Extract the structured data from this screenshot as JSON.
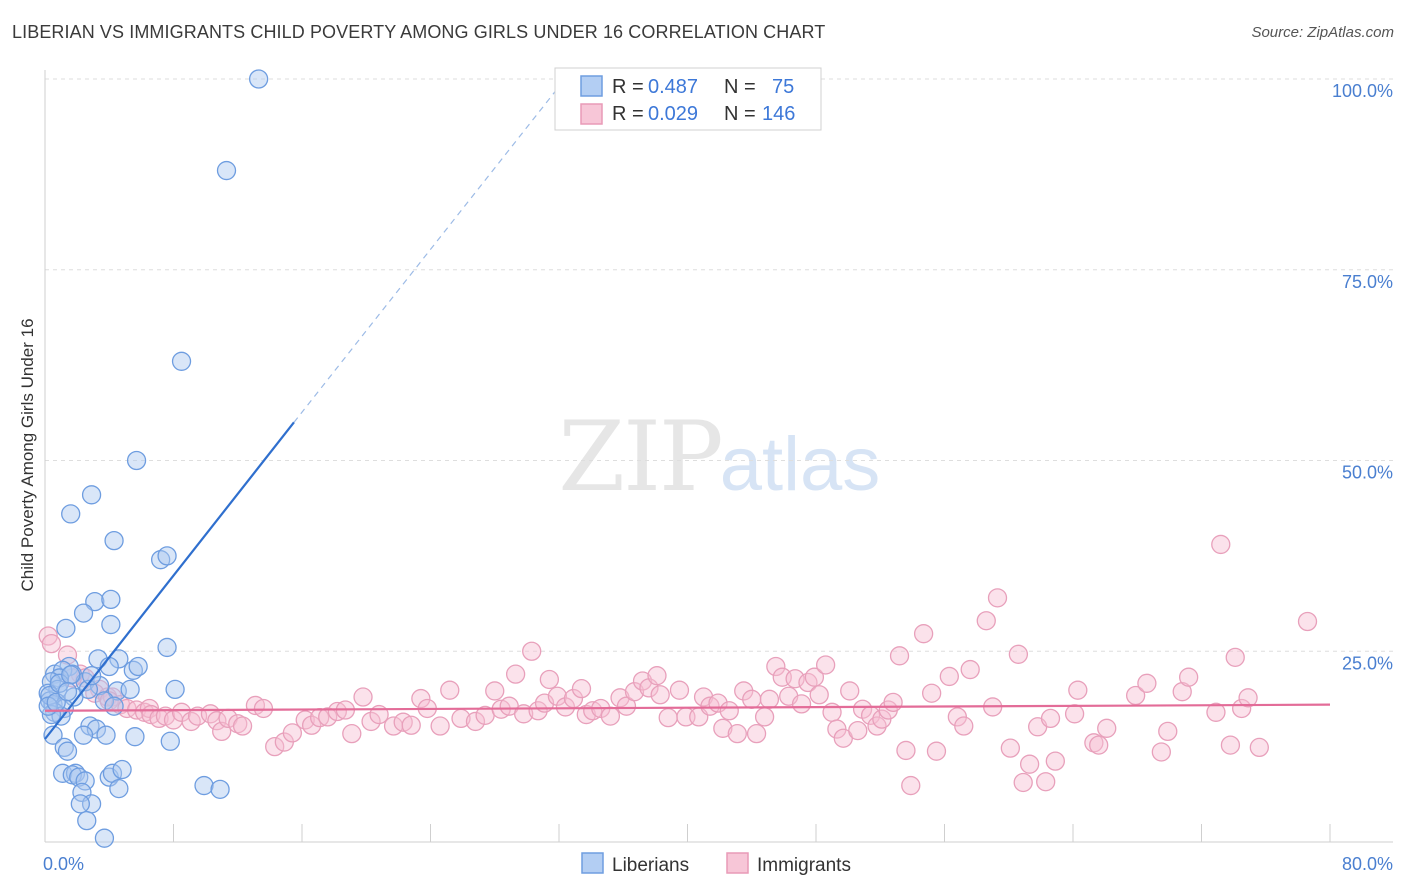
{
  "title": "LIBERIAN VS IMMIGRANTS CHILD POVERTY AMONG GIRLS UNDER 16 CORRELATION CHART",
  "source": "Source: ZipAtlas.com",
  "watermark": {
    "zip": "ZIP",
    "atlas": "atlas"
  },
  "colors": {
    "blue": "#5b8fdc",
    "blue_fill": "#a9c8f0",
    "blue_line": "#2f6fce",
    "pink": "#e691b0",
    "pink_fill": "#f6c4d5",
    "pink_line": "#e36c98",
    "tick": "#4a7fd0",
    "grid": "#dcdcdc"
  },
  "chart_data": {
    "type": "scatter",
    "title": "LIBERIAN VS IMMIGRANTS CHILD POVERTY AMONG GIRLS UNDER 16 CORRELATION CHART",
    "xlabel": "",
    "ylabel": "Child Poverty Among Girls Under 16",
    "xlim": [
      0,
      80
    ],
    "ylim": [
      0,
      105
    ],
    "x_tick_labels": [
      "0.0%",
      "80.0%"
    ],
    "y_ticks": [
      25,
      50,
      75,
      100
    ],
    "y_tick_labels": [
      "25.0%",
      "50.0%",
      "75.0%",
      "100.0%"
    ],
    "grid": true,
    "legend": {
      "placement": "top-center",
      "entries": [
        {
          "r_label": "R =",
          "r_value": "0.487",
          "n_label": "N =",
          "n_value": "75"
        },
        {
          "r_label": "R =",
          "r_value": "0.029",
          "n_label": "N =",
          "n_value": "146"
        }
      ]
    },
    "series": [
      {
        "name": "Liberians",
        "trend": {
          "x0": 0,
          "y0": 13.5,
          "x1": 15.5,
          "y1": 55,
          "dash_to_x": 32,
          "dash_to_y": 99
        },
        "points": [
          [
            13.3,
            100
          ],
          [
            11.3,
            88
          ],
          [
            8.5,
            63
          ],
          [
            5.7,
            50
          ],
          [
            2.9,
            45.5
          ],
          [
            1.6,
            43
          ],
          [
            4.3,
            39.5
          ],
          [
            7.2,
            37
          ],
          [
            7.6,
            37.5
          ],
          [
            3.1,
            31.5
          ],
          [
            4.1,
            31.8
          ],
          [
            2.4,
            30
          ],
          [
            1.3,
            28
          ],
          [
            4.1,
            28.5
          ],
          [
            7.6,
            25.5
          ],
          [
            3.3,
            24
          ],
          [
            4.6,
            24
          ],
          [
            1.5,
            23
          ],
          [
            0.6,
            22
          ],
          [
            1.1,
            22.5
          ],
          [
            1.7,
            22
          ],
          [
            0.9,
            21.5
          ],
          [
            2.5,
            21
          ],
          [
            0.4,
            21
          ],
          [
            3.4,
            20.5
          ],
          [
            0.8,
            20
          ],
          [
            2.7,
            20
          ],
          [
            0.2,
            19.5
          ],
          [
            1.8,
            19
          ],
          [
            0.3,
            18.5
          ],
          [
            0.5,
            18
          ],
          [
            1.2,
            17.5
          ],
          [
            4.5,
            19.8
          ],
          [
            5.5,
            22.5
          ],
          [
            2.9,
            21.8
          ],
          [
            3.7,
            18.5
          ],
          [
            0.6,
            17
          ],
          [
            1.0,
            16.5
          ],
          [
            8.1,
            20
          ],
          [
            5.3,
            20
          ],
          [
            0.4,
            16.7
          ],
          [
            2.8,
            15.2
          ],
          [
            3.2,
            14.8
          ],
          [
            0.5,
            14
          ],
          [
            2.4,
            14
          ],
          [
            3.8,
            14
          ],
          [
            5.6,
            13.8
          ],
          [
            7.8,
            13.2
          ],
          [
            1.2,
            12.4
          ],
          [
            1.4,
            11.9
          ],
          [
            1.1,
            9
          ],
          [
            1.9,
            9
          ],
          [
            1.7,
            8.8
          ],
          [
            2.1,
            8.5
          ],
          [
            4.0,
            8.5
          ],
          [
            4.2,
            9
          ],
          [
            4.8,
            9.5
          ],
          [
            2.5,
            8
          ],
          [
            2.3,
            6.5
          ],
          [
            4.6,
            7
          ],
          [
            9.9,
            7.4
          ],
          [
            10.9,
            6.9
          ],
          [
            2.9,
            5
          ],
          [
            2.2,
            5
          ],
          [
            2.6,
            2.8
          ],
          [
            3.7,
            0.5
          ],
          [
            4.3,
            17.8
          ],
          [
            4.0,
            23
          ],
          [
            0.3,
            19.2
          ],
          [
            0.9,
            20.8
          ],
          [
            1.6,
            21.9
          ],
          [
            0.2,
            17.8
          ],
          [
            0.7,
            18.3
          ],
          [
            1.4,
            19.7
          ],
          [
            5.8,
            23
          ]
        ]
      },
      {
        "name": "Immigrants",
        "trend": {
          "x0": 0,
          "y0": 17.2,
          "x1": 80,
          "y1": 18.0
        },
        "points": [
          [
            73.2,
            39
          ],
          [
            0.2,
            27
          ],
          [
            0.4,
            26
          ],
          [
            1.4,
            24.5
          ],
          [
            2.2,
            22
          ],
          [
            2.5,
            21.5
          ],
          [
            1.7,
            21.5
          ],
          [
            3.4,
            20
          ],
          [
            3.1,
            19.5
          ],
          [
            3.9,
            19
          ],
          [
            4.2,
            19
          ],
          [
            4.0,
            18.5
          ],
          [
            4.7,
            18
          ],
          [
            5.1,
            17.5
          ],
          [
            5.7,
            17.3
          ],
          [
            6.2,
            17
          ],
          [
            6.5,
            17.5
          ],
          [
            6.6,
            16.7
          ],
          [
            7.1,
            16.2
          ],
          [
            7.5,
            16.5
          ],
          [
            8.0,
            16
          ],
          [
            8.5,
            17
          ],
          [
            9.1,
            15.8
          ],
          [
            9.5,
            16.5
          ],
          [
            10.3,
            16.8
          ],
          [
            10.7,
            15.9
          ],
          [
            11.0,
            14.5
          ],
          [
            11.4,
            16.2
          ],
          [
            12.0,
            15.5
          ],
          [
            12.3,
            15.2
          ],
          [
            13.1,
            17.9
          ],
          [
            13.6,
            17.5
          ],
          [
            14.3,
            12.5
          ],
          [
            14.9,
            13.1
          ],
          [
            15.4,
            14.3
          ],
          [
            16.2,
            16
          ],
          [
            16.6,
            15.3
          ],
          [
            17.1,
            16.3
          ],
          [
            17.6,
            16.4
          ],
          [
            18.2,
            17.1
          ],
          [
            18.7,
            17.3
          ],
          [
            19.1,
            14.2
          ],
          [
            19.8,
            19
          ],
          [
            20.3,
            15.8
          ],
          [
            20.8,
            16.7
          ],
          [
            21.7,
            15.2
          ],
          [
            22.3,
            15.7
          ],
          [
            22.8,
            15.3
          ],
          [
            23.4,
            18.8
          ],
          [
            23.8,
            17.5
          ],
          [
            24.6,
            15.2
          ],
          [
            25.2,
            19.9
          ],
          [
            25.9,
            16.2
          ],
          [
            26.8,
            15.8
          ],
          [
            27.4,
            16.6
          ],
          [
            28.0,
            19.8
          ],
          [
            28.4,
            17.4
          ],
          [
            28.9,
            17.8
          ],
          [
            29.3,
            22
          ],
          [
            29.8,
            16.8
          ],
          [
            30.3,
            25
          ],
          [
            30.7,
            17.2
          ],
          [
            31.1,
            18.2
          ],
          [
            31.4,
            21.3
          ],
          [
            31.9,
            19.1
          ],
          [
            32.4,
            17.7
          ],
          [
            32.9,
            18.8
          ],
          [
            33.4,
            20.1
          ],
          [
            33.7,
            16.7
          ],
          [
            34.1,
            17.2
          ],
          [
            34.6,
            17.5
          ],
          [
            35.2,
            16.5
          ],
          [
            35.8,
            18.9
          ],
          [
            36.2,
            17.8
          ],
          [
            36.7,
            19.7
          ],
          [
            37.2,
            21.1
          ],
          [
            37.6,
            20.2
          ],
          [
            38.1,
            21.8
          ],
          [
            38.3,
            19.3
          ],
          [
            38.8,
            16.3
          ],
          [
            39.5,
            19.9
          ],
          [
            39.9,
            16.4
          ],
          [
            40.7,
            16.4
          ],
          [
            41.0,
            19
          ],
          [
            41.4,
            17.8
          ],
          [
            41.9,
            18.2
          ],
          [
            42.2,
            14.9
          ],
          [
            42.6,
            17.2
          ],
          [
            43.1,
            14.2
          ],
          [
            43.5,
            19.8
          ],
          [
            44.0,
            18.7
          ],
          [
            44.3,
            14.2
          ],
          [
            44.8,
            16.4
          ],
          [
            45.1,
            18.7
          ],
          [
            45.5,
            23
          ],
          [
            45.9,
            21.6
          ],
          [
            46.3,
            19.1
          ],
          [
            46.7,
            21.4
          ],
          [
            47.1,
            18.1
          ],
          [
            47.5,
            20.9
          ],
          [
            47.9,
            21.6
          ],
          [
            48.2,
            19.3
          ],
          [
            48.6,
            23.2
          ],
          [
            49.0,
            17
          ],
          [
            49.3,
            14.8
          ],
          [
            49.7,
            13.6
          ],
          [
            50.1,
            19.8
          ],
          [
            50.6,
            14.6
          ],
          [
            50.9,
            17.4
          ],
          [
            51.4,
            16.6
          ],
          [
            51.8,
            15.2
          ],
          [
            52.1,
            16.1
          ],
          [
            52.5,
            17.3
          ],
          [
            52.8,
            18.3
          ],
          [
            53.2,
            24.4
          ],
          [
            53.6,
            12
          ],
          [
            53.9,
            7.4
          ],
          [
            54.7,
            27.3
          ],
          [
            55.2,
            19.5
          ],
          [
            55.5,
            11.9
          ],
          [
            56.3,
            21.7
          ],
          [
            56.8,
            16.4
          ],
          [
            57.2,
            15.2
          ],
          [
            57.6,
            22.6
          ],
          [
            58.6,
            29
          ],
          [
            59.0,
            17.7
          ],
          [
            59.3,
            32
          ],
          [
            60.1,
            12.3
          ],
          [
            60.6,
            24.6
          ],
          [
            60.9,
            7.8
          ],
          [
            61.3,
            10.2
          ],
          [
            61.8,
            15.1
          ],
          [
            62.3,
            7.9
          ],
          [
            62.6,
            16.2
          ],
          [
            62.9,
            10.6
          ],
          [
            64.1,
            16.8
          ],
          [
            64.3,
            19.9
          ],
          [
            65.3,
            13
          ],
          [
            65.6,
            12.7
          ],
          [
            66.1,
            14.9
          ],
          [
            67.9,
            19.2
          ],
          [
            68.6,
            20.8
          ],
          [
            69.5,
            11.8
          ],
          [
            69.9,
            14.5
          ],
          [
            70.8,
            19.7
          ],
          [
            71.2,
            21.6
          ],
          [
            72.9,
            17
          ],
          [
            73.8,
            12.7
          ],
          [
            74.1,
            24.2
          ],
          [
            74.5,
            17.5
          ],
          [
            74.9,
            18.9
          ],
          [
            75.6,
            12.4
          ],
          [
            78.6,
            28.9
          ]
        ]
      }
    ]
  }
}
